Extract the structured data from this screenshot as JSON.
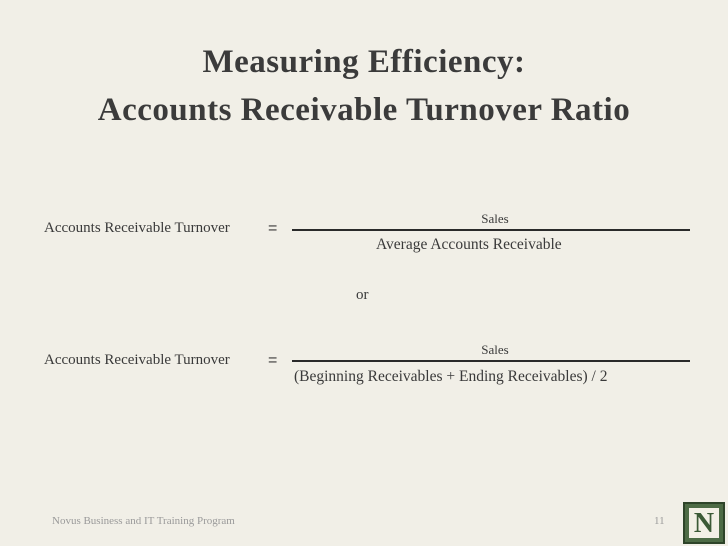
{
  "title": {
    "line1": "Measuring Efficiency:",
    "line2": "Accounts Receivable Turnover Ratio"
  },
  "formula1": {
    "label": "Accounts Receivable Turnover",
    "equals": "=",
    "numerator": "Sales",
    "denominator": "Average Accounts Receivable"
  },
  "separator": "or",
  "formula2": {
    "label": "Accounts Receivable Turnover",
    "equals": "=",
    "numerator": "Sales",
    "denominator": "(Beginning Receivables + Ending Receivables) / 2"
  },
  "footer": {
    "text": "Novus Business and IT Training Program",
    "page": "11",
    "logo_letter": "N"
  }
}
